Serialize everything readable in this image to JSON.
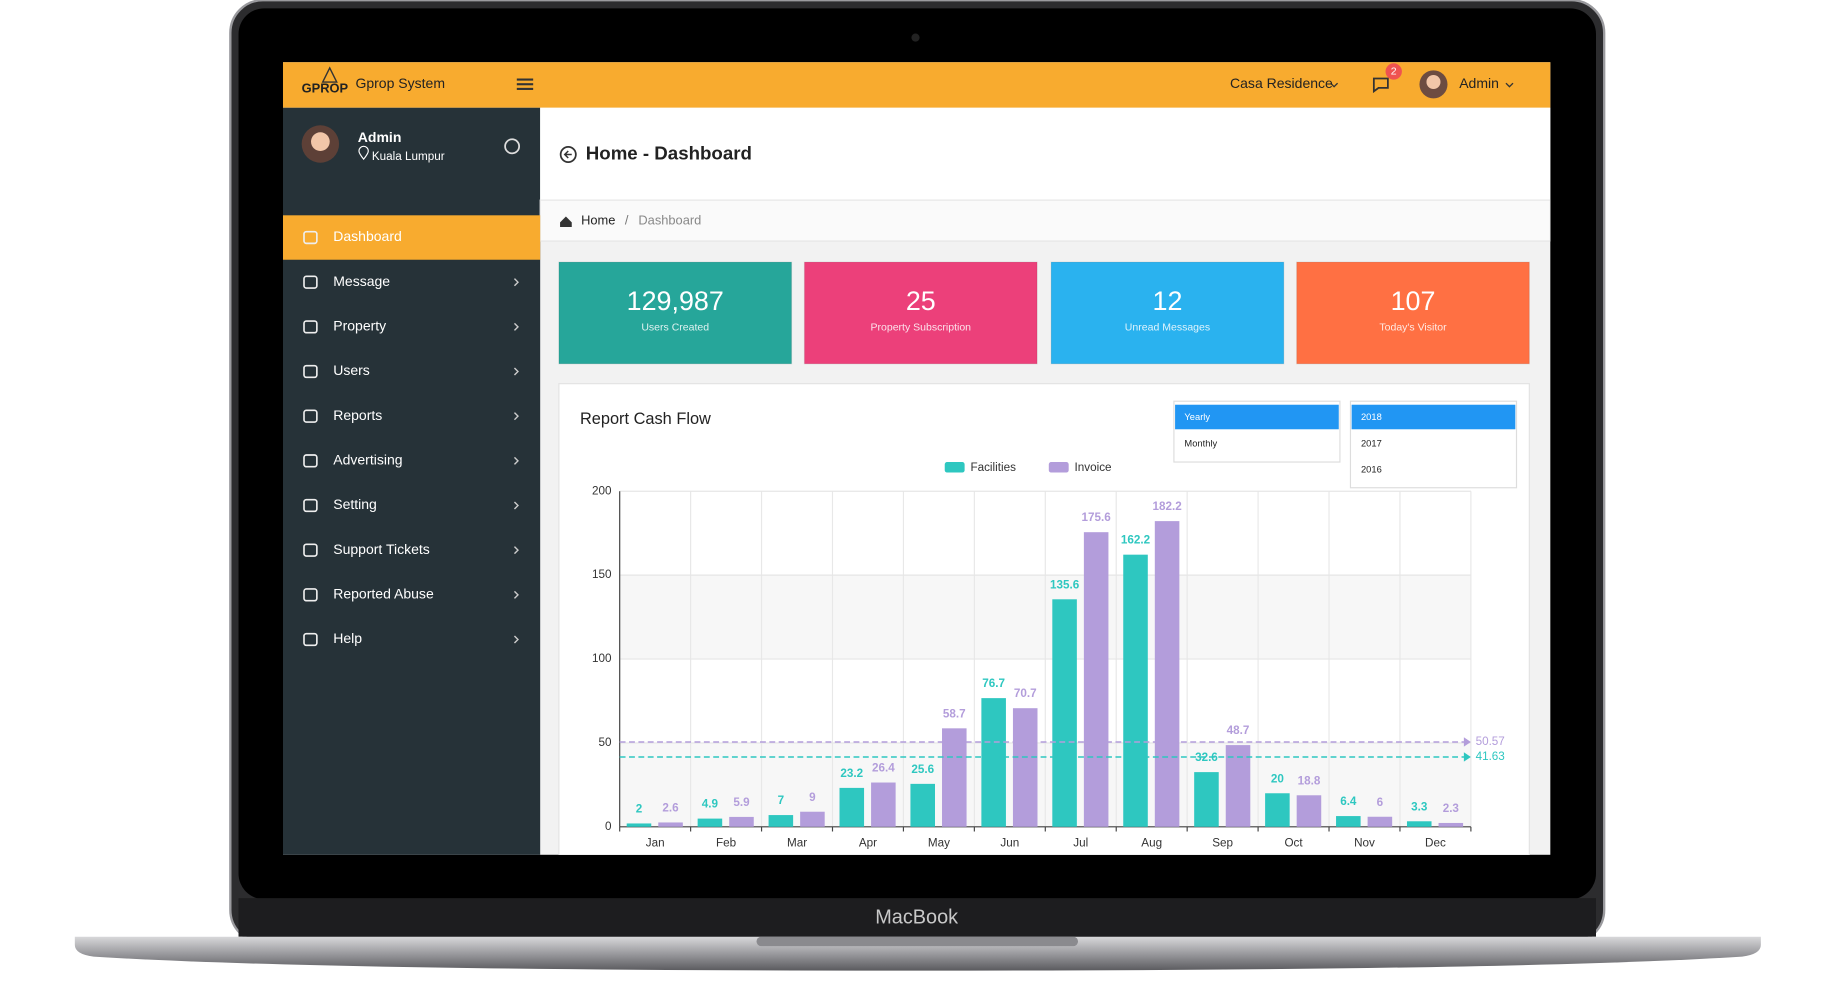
{
  "device": {
    "brand": "MacBook"
  },
  "header": {
    "logo": "GPROP",
    "app_name": "Gprop System",
    "property": "Casa Residence",
    "notifications": 2,
    "user": "Admin"
  },
  "sidebar": {
    "user": "Admin",
    "location": "Kuala Lumpur",
    "menu": [
      "Dashboard",
      "Message",
      "Property",
      "Users",
      "Reports",
      "Advertising",
      "Setting",
      "Support Tickets",
      "Reported Abuse",
      "Help"
    ]
  },
  "page": {
    "title": "Home - Dashboard",
    "breadcrumb": [
      "Home",
      "Dashboard"
    ],
    "breadcrumb_separator": "/"
  },
  "stats": [
    {
      "value": 129987,
      "value_label": "129,987",
      "label": "Users Created",
      "color": "#26a69a"
    },
    {
      "value": 25,
      "label": "Property Subscription",
      "color": "#ec407a"
    },
    {
      "value": 12,
      "label": "Unread Messages",
      "color": "#2ab2ef"
    },
    {
      "value": 107,
      "label": "Today's Visitor",
      "color": "#ff7043"
    }
  ],
  "filters": {
    "period": [
      "Yearly",
      "Monthly"
    ],
    "year": [
      "2018",
      "2017",
      "2016"
    ]
  },
  "chart_data": {
    "type": "bar",
    "title": "Report Cash Flow",
    "categories": [
      "Jan",
      "Feb",
      "Mar",
      "Apr",
      "May",
      "Jun",
      "Jul",
      "Aug",
      "Sep",
      "Oct",
      "Nov",
      "Dec"
    ],
    "series": [
      {
        "name": "Facilities",
        "color": "#2ec7c0",
        "values": [
          2,
          4.9,
          7,
          23.2,
          25.6,
          76.7,
          135.6,
          162.2,
          32.6,
          20,
          6.4,
          3.3
        ],
        "average": 41.63
      },
      {
        "name": "Invoice",
        "color": "#b39ddb",
        "values": [
          2.6,
          5.9,
          9,
          26.4,
          58.7,
          70.7,
          175.6,
          182.2,
          48.7,
          18.8,
          6,
          2.3
        ],
        "average": 50.57
      }
    ],
    "ylim": [
      0,
      200
    ],
    "yticks": [
      0,
      50,
      100,
      150,
      200
    ],
    "grid": true
  }
}
